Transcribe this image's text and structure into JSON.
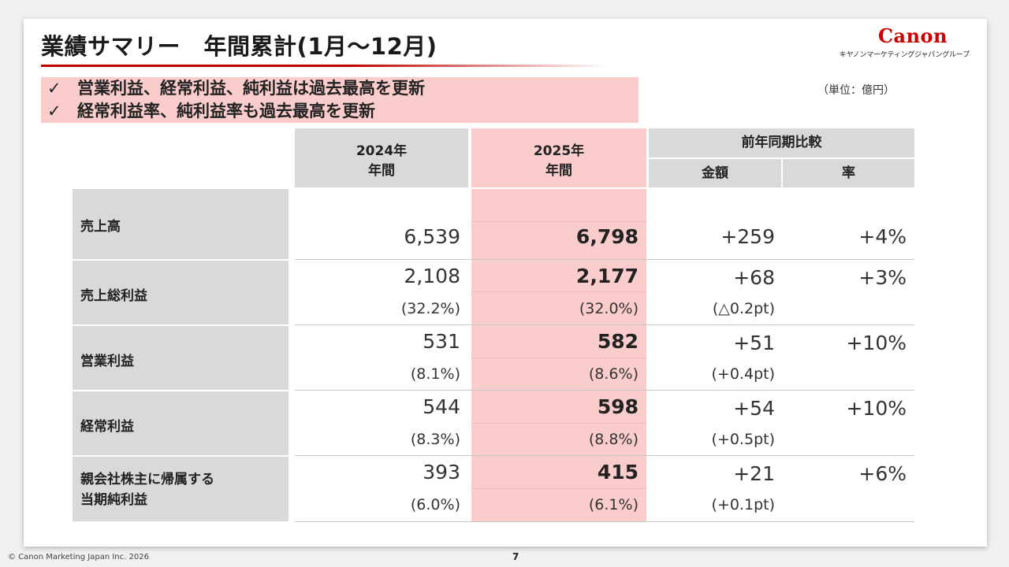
{
  "title": "業績サマリー　年間累計(1月～12月)",
  "logo": {
    "mark": "Canon",
    "sub": "キヤノンマーケティングジャパングループ"
  },
  "highlights": [
    "営業利益、経常利益、純利益は過去最高を更新",
    "経常利益率、純利益率も過去最高を更新"
  ],
  "check_glyph": "✓",
  "unit": "（単位：億円）",
  "headers": {
    "col2024_line1": "2024年",
    "col2024_line2": "年間",
    "col2025_line1": "2025年",
    "col2025_line2": "年間",
    "yoy": "前年同期比較",
    "amount": "金額",
    "rate": "率"
  },
  "rows": [
    {
      "label_line1": "売上高",
      "label_line2": "",
      "v2024": "6,539",
      "v2025": "6,798",
      "diff": "+259",
      "rate": "+4%",
      "m2024": "",
      "m2025": "",
      "mdiff": ""
    },
    {
      "label_line1": "売上総利益",
      "label_line2": "",
      "v2024": "2,108",
      "v2025": "2,177",
      "diff": "+68",
      "rate": "+3%",
      "m2024": "(32.2%)",
      "m2025": "(32.0%)",
      "mdiff": "(△0.2pt)"
    },
    {
      "label_line1": "営業利益",
      "label_line2": "",
      "v2024": "531",
      "v2025": "582",
      "diff": "+51",
      "rate": "+10%",
      "m2024": "(8.1%)",
      "m2025": "(8.6%)",
      "mdiff": "(+0.4pt)"
    },
    {
      "label_line1": "経常利益",
      "label_line2": "",
      "v2024": "544",
      "v2025": "598",
      "diff": "+54",
      "rate": "+10%",
      "m2024": "(8.3%)",
      "m2025": "(8.8%)",
      "mdiff": "(+0.5pt)"
    },
    {
      "label_line1": "親会社株主に帰属する",
      "label_line2": "当期純利益",
      "v2024": "393",
      "v2025": "415",
      "diff": "+21",
      "rate": "+6%",
      "m2024": "(6.0%)",
      "m2025": "(6.1%)",
      "mdiff": "(+0.1pt)"
    }
  ],
  "footer": {
    "copyright": "© Canon Marketing Japan Inc. 2026",
    "page": "7"
  },
  "colors": {
    "accent": "#cc0000",
    "highlight": "#fbcccc",
    "header_gray": "#d9d9d9"
  }
}
